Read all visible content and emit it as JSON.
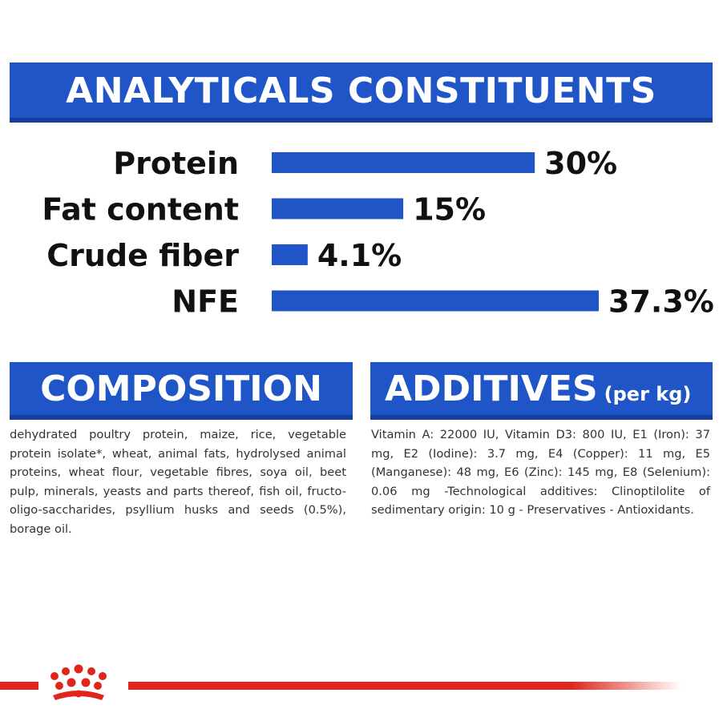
{
  "analytics_header": "ANALYTICALS CONSTITUENTS",
  "chart_data": {
    "type": "bar",
    "orientation": "horizontal",
    "categories": [
      "Protein",
      "Fat content",
      "Crude fiber",
      "NFE"
    ],
    "values": [
      30,
      15,
      4.1,
      37.3
    ],
    "value_labels": [
      "30%",
      "15%",
      "4.1%",
      "37.3%"
    ],
    "unit": "%",
    "bar_color": "#1f55c6",
    "grid": false,
    "legend": "none"
  },
  "composition": {
    "title": "COMPOSITION",
    "text": "dehydrated poultry protein, maize, rice, vegetable protein isolate*, wheat, animal fats, hydrolysed animal proteins, wheat flour, vegetable fibres, soya oil, beet pulp, minerals, yeasts and parts thereof, fish oil, fructo-oligo-saccharides, psyllium husks and seeds (0.5%), borage oil."
  },
  "additives": {
    "title": "ADDITIVES",
    "title_suffix": "(per kg)",
    "text": "Vitamin A: 22000 IU, Vitamin D3: 800 IU, E1 (Iron): 37 mg, E2 (Iodine): 3.7 mg, E4 (Copper): 11 mg, E5 (Manganese): 48 mg, E6 (Zinc): 145 mg, E8 (Selenium): 0.06 mg -Technological additives: Clinoptilolite of sedimentary origin: 10 g - Preservatives - Antioxidants."
  },
  "colors": {
    "brand_blue": "#1f55c6",
    "brand_red": "#e1251b"
  },
  "logo": "crown-icon"
}
